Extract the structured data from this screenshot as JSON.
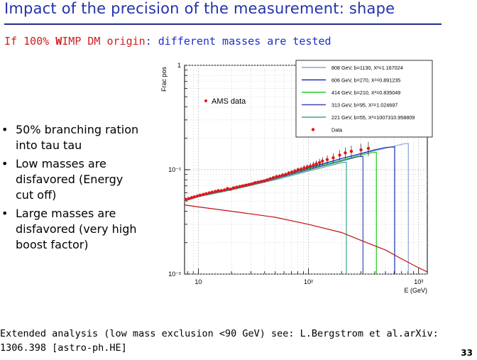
{
  "slide": {
    "title": "Impact of the precision of the measurement: shape",
    "subtitle": {
      "part1": "If 100% ",
      "part_bold": "W",
      "part2": "IMP DM origin",
      "part3": ": different masses are tested"
    },
    "bullets": [
      "50% branching ration into tau tau",
      "Low masses are disfavored (Energy cut off)",
      "Large masses are disfavored (very high boost factor)"
    ],
    "bullet_glyph": "•",
    "footer_line1": "Extended analysis (low mass exclusion <90 GeV)  see: L.Bergstrom et al.arXiv:",
    "footer_line2": "1306.398 [astro-ph.HE]",
    "page_number": "33"
  },
  "chart_data": {
    "type": "line",
    "ylabel": "Frac pos",
    "xlabel": "E (GeV)",
    "x_scale": "log",
    "y_scale": "log",
    "xlim": [
      7.5,
      1200
    ],
    "ylim": [
      0.01,
      1
    ],
    "x_ticks": [
      {
        "value": 10,
        "label": "10"
      },
      {
        "value": 100,
        "label": "10²"
      },
      {
        "value": 1000,
        "label": "10³"
      }
    ],
    "y_ticks": [
      {
        "value": 1,
        "label": "1"
      },
      {
        "value": 0.1,
        "label": "10⁻¹"
      },
      {
        "value": 0.01,
        "label": "10⁻²"
      }
    ],
    "grid": true,
    "annotation": "AMS data",
    "legend_position": "top-right",
    "legend": [
      {
        "label": "808 GeV, b=1130, X²=1.167024",
        "color": "#8aa4dc"
      },
      {
        "label": "606 GeV, b=270, X²=0.891235",
        "color": "#1a2fb8"
      },
      {
        "label": "414 GeV, b=210, X²=0.835049",
        "color": "#22cc22"
      },
      {
        "label": "313 GeV, b=95, X²=1.024697",
        "color": "#3a4ab8"
      },
      {
        "label": "221 GeV, b=55, X²=1007310.958809",
        "color": "#3aa88a"
      },
      {
        "label": "Data",
        "color": "#e01818"
      }
    ],
    "series": [
      {
        "name": "808 GeV, b=1130, X²=1.167024",
        "color": "#8aa4dc",
        "cutoff": 808,
        "x": [
          7.5,
          10,
          20,
          50,
          100,
          200,
          400,
          600,
          700,
          760,
          808
        ],
        "y": [
          0.05,
          0.056,
          0.067,
          0.085,
          0.105,
          0.128,
          0.152,
          0.168,
          0.175,
          0.178,
          0.178
        ]
      },
      {
        "name": "606 GeV, b=270, X²=0.891235",
        "color": "#1a2fb8",
        "cutoff": 606,
        "x": [
          7.5,
          10,
          20,
          50,
          100,
          200,
          300,
          400,
          500,
          570,
          606
        ],
        "y": [
          0.051,
          0.056,
          0.066,
          0.084,
          0.104,
          0.128,
          0.143,
          0.155,
          0.163,
          0.165,
          0.165
        ]
      },
      {
        "name": "414 GeV, b=210, X²=0.835049",
        "color": "#22cc22",
        "cutoff": 414,
        "x": [
          7.5,
          10,
          20,
          50,
          100,
          200,
          300,
          380,
          414
        ],
        "y": [
          0.051,
          0.056,
          0.066,
          0.083,
          0.102,
          0.124,
          0.138,
          0.146,
          0.147
        ]
      },
      {
        "name": "313 GeV, b=95, X²=1.024697",
        "color": "#3a4ab8",
        "cutoff": 313,
        "x": [
          7.5,
          10,
          20,
          50,
          100,
          200,
          280,
          313
        ],
        "y": [
          0.051,
          0.056,
          0.065,
          0.082,
          0.1,
          0.121,
          0.133,
          0.134
        ]
      },
      {
        "name": "221 GeV, b=55, X²=1007310.958809",
        "color": "#3aa88a",
        "cutoff": 221,
        "x": [
          7.5,
          10,
          20,
          50,
          100,
          150,
          200,
          221
        ],
        "y": [
          0.05,
          0.055,
          0.064,
          0.08,
          0.097,
          0.108,
          0.117,
          0.118
        ]
      },
      {
        "name": "",
        "color": "#c01010",
        "x": [
          7.5,
          10,
          20,
          50,
          100,
          200,
          300,
          500,
          700,
          1000,
          1200
        ],
        "y": [
          0.046,
          0.044,
          0.04,
          0.035,
          0.03,
          0.025,
          0.021,
          0.017,
          0.014,
          0.0115,
          0.0105
        ]
      }
    ],
    "data_points": {
      "name": "Data",
      "color": "#e01818",
      "x": [
        7.7,
        8.2,
        8.7,
        9.2,
        9.8,
        10.4,
        11.1,
        11.8,
        12.6,
        13.4,
        14.3,
        15.2,
        16.2,
        17.3,
        18.4,
        19.6,
        20.9,
        22.3,
        23.8,
        25.3,
        27.0,
        28.8,
        30.7,
        32.7,
        34.9,
        37.2,
        39.7,
        42.3,
        45.1,
        48.1,
        51.3,
        54.7,
        58.3,
        62.2,
        66.3,
        70.7,
        75.4,
        80.4,
        85.7,
        91.4,
        97.5,
        104,
        111,
        118,
        126,
        134,
        148,
        168,
        192,
        216,
        245,
        300,
        350
      ],
      "y": [
        0.052,
        0.053,
        0.054,
        0.055,
        0.056,
        0.057,
        0.058,
        0.059,
        0.06,
        0.061,
        0.062,
        0.063,
        0.063,
        0.064,
        0.066,
        0.065,
        0.067,
        0.068,
        0.069,
        0.07,
        0.071,
        0.072,
        0.073,
        0.075,
        0.076,
        0.077,
        0.078,
        0.08,
        0.082,
        0.084,
        0.086,
        0.087,
        0.089,
        0.09,
        0.093,
        0.095,
        0.097,
        0.1,
        0.101,
        0.104,
        0.106,
        0.108,
        0.111,
        0.114,
        0.117,
        0.121,
        0.125,
        0.13,
        0.138,
        0.145,
        0.15,
        0.155,
        0.16
      ],
      "err": [
        0.001,
        0.001,
        0.001,
        0.001,
        0.001,
        0.001,
        0.001,
        0.001,
        0.001,
        0.001,
        0.001,
        0.001,
        0.001,
        0.001,
        0.001,
        0.001,
        0.001,
        0.001,
        0.001,
        0.001,
        0.001,
        0.002,
        0.002,
        0.002,
        0.002,
        0.002,
        0.002,
        0.002,
        0.002,
        0.003,
        0.003,
        0.003,
        0.003,
        0.004,
        0.004,
        0.004,
        0.005,
        0.005,
        0.006,
        0.006,
        0.007,
        0.008,
        0.008,
        0.009,
        0.01,
        0.011,
        0.012,
        0.014,
        0.016,
        0.018,
        0.02,
        0.022,
        0.025
      ]
    }
  }
}
